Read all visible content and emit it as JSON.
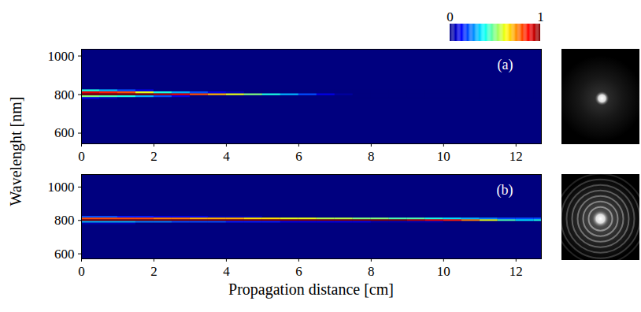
{
  "chart_data": [
    {
      "type": "heatmap",
      "label": "(a)",
      "xlim": [
        0,
        12.7
      ],
      "xticks": [
        0,
        2,
        4,
        6,
        8,
        10,
        12
      ],
      "ylim": [
        545,
        1035
      ],
      "yticks": [
        600,
        800,
        1000
      ],
      "x_edges": [
        0,
        0.5,
        1,
        1.5,
        2,
        2.5,
        3,
        3.5,
        4,
        4.5,
        5,
        5.5,
        6,
        6.5,
        7,
        7.5,
        8,
        8.5,
        9,
        9.5,
        10,
        10.5,
        11,
        11.5,
        12,
        12.5,
        13
      ],
      "y_edges": [
        775,
        785,
        795,
        805,
        815,
        825
      ],
      "z": [
        [
          0.1,
          0.05,
          0,
          0,
          0,
          0,
          0,
          0,
          0,
          0,
          0,
          0,
          0,
          0,
          0,
          0,
          0,
          0,
          0,
          0,
          0,
          0,
          0,
          0,
          0,
          0
        ],
        [
          0.5,
          0.45,
          0.4,
          0.3,
          0.2,
          0.1,
          0,
          0,
          0,
          0,
          0,
          0,
          0,
          0,
          0,
          0,
          0,
          0,
          0,
          0,
          0,
          0,
          0,
          0,
          0,
          0
        ],
        [
          1,
          1,
          1,
          1,
          0.95,
          0.9,
          0.8,
          0.7,
          0.6,
          0.5,
          0.4,
          0.3,
          0.2,
          0.1,
          0.03,
          0,
          0,
          0,
          0,
          0,
          0,
          0,
          0,
          0,
          0,
          0
        ],
        [
          0.9,
          0.85,
          0.8,
          0.6,
          0.4,
          0.3,
          0.2,
          0.1,
          0.05,
          0,
          0,
          0,
          0,
          0,
          0,
          0,
          0,
          0,
          0,
          0,
          0,
          0,
          0,
          0,
          0,
          0
        ],
        [
          0.4,
          0.3,
          0.2,
          0.1,
          0,
          0,
          0,
          0,
          0,
          0,
          0,
          0,
          0,
          0,
          0,
          0,
          0,
          0,
          0,
          0,
          0,
          0,
          0,
          0,
          0,
          0
        ]
      ]
    },
    {
      "type": "heatmap",
      "label": "(b)",
      "xlim": [
        0,
        12.7
      ],
      "xticks": [
        0,
        2,
        4,
        6,
        8,
        10,
        12
      ],
      "ylim": [
        570,
        1075
      ],
      "yticks": [
        600,
        800,
        1000
      ],
      "x_edges": [
        0,
        0.5,
        1,
        1.5,
        2,
        2.5,
        3,
        3.5,
        4,
        4.5,
        5,
        5.5,
        6,
        6.5,
        7,
        7.5,
        8,
        8.5,
        9,
        9.5,
        10,
        10.5,
        11,
        11.5,
        12,
        12.5,
        13
      ],
      "y_edges": [
        775,
        785,
        795,
        805,
        815,
        825
      ],
      "z": [
        [
          0.05,
          0.05,
          0.05,
          0,
          0,
          0,
          0,
          0,
          0,
          0,
          0,
          0,
          0,
          0,
          0,
          0,
          0,
          0,
          0,
          0,
          0,
          0,
          0,
          0,
          0,
          0
        ],
        [
          0.3,
          0.3,
          0.3,
          0.25,
          0.25,
          0.2,
          0.2,
          0.2,
          0.15,
          0.15,
          0.15,
          0.1,
          0.1,
          0.1,
          0.1,
          0.1,
          0.05,
          0.05,
          0.05,
          0.05,
          0,
          0,
          0,
          0,
          0,
          0
        ],
        [
          1,
          1,
          1,
          1,
          1,
          1,
          1,
          1,
          1,
          1,
          1,
          1,
          1,
          1,
          1,
          1,
          1,
          1,
          0.95,
          0.9,
          0.85,
          0.75,
          0.6,
          0.45,
          0.35,
          0.4
        ],
        [
          0.8,
          0.8,
          0.8,
          0.8,
          0.75,
          0.75,
          0.7,
          0.7,
          0.7,
          0.65,
          0.65,
          0.6,
          0.6,
          0.55,
          0.55,
          0.5,
          0.5,
          0.45,
          0.45,
          0.4,
          0.35,
          0.3,
          0.25,
          0.2,
          0.2,
          0.2
        ],
        [
          0.2,
          0.2,
          0.15,
          0.15,
          0.1,
          0.1,
          0.1,
          0.05,
          0.05,
          0.05,
          0,
          0,
          0,
          0,
          0,
          0,
          0,
          0,
          0,
          0,
          0,
          0,
          0,
          0,
          0,
          0
        ]
      ]
    }
  ],
  "x_label": "Propagation distance [cm]",
  "y_label": "Wavelenght [nm]",
  "colorbar": {
    "range": [
      0,
      1
    ],
    "ticks": [
      0,
      1
    ]
  }
}
